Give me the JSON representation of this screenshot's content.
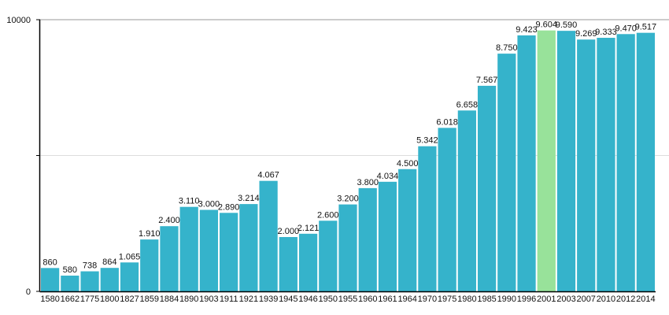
{
  "chart_data": {
    "type": "bar",
    "title": "",
    "xlabel": "",
    "ylabel": "",
    "ylim": [
      0,
      10000
    ],
    "yticks": [
      0,
      5000,
      10000
    ],
    "ytick_labels": [
      "0",
      "",
      "10000"
    ],
    "grid": true,
    "categories": [
      "1580",
      "1662",
      "1775",
      "1800",
      "1827",
      "1859",
      "1884",
      "1890",
      "1903",
      "1911",
      "1921",
      "1939",
      "1945",
      "1946",
      "1950",
      "1955",
      "1960",
      "1961",
      "1964",
      "1970",
      "1975",
      "1980",
      "1985",
      "1990",
      "1996",
      "2001",
      "2003",
      "2007",
      "2010",
      "2012",
      "2014"
    ],
    "values": [
      860,
      580,
      738,
      864,
      1065,
      1910,
      2400,
      3110,
      3000,
      2890,
      3214,
      4067,
      2000,
      2121,
      2600,
      3200,
      3800,
      4034,
      4500,
      5342,
      6018,
      6658,
      7567,
      8750,
      9423,
      9604,
      9590,
      9269,
      9333,
      9470,
      9517
    ],
    "value_labels": [
      "860",
      "580",
      "738",
      "864",
      "1.065",
      "1.910",
      "2.400",
      "3.110",
      "3.000",
      "2.890",
      "3.214",
      "4.067",
      "2.000",
      "2.121",
      "2.600",
      "3.200",
      "3.800",
      "4.034",
      "4.500",
      "5.342",
      "6.018",
      "6.658",
      "7.567",
      "8.750",
      "9.423",
      "9.604",
      "9.590",
      "9.269",
      "9.333",
      "9.470",
      "9.517"
    ],
    "highlight_category": "2001",
    "colors": {
      "bar": "#35b3cb",
      "highlight": "#98e29a",
      "axis": "#000000",
      "grid": "#dddddd"
    }
  }
}
